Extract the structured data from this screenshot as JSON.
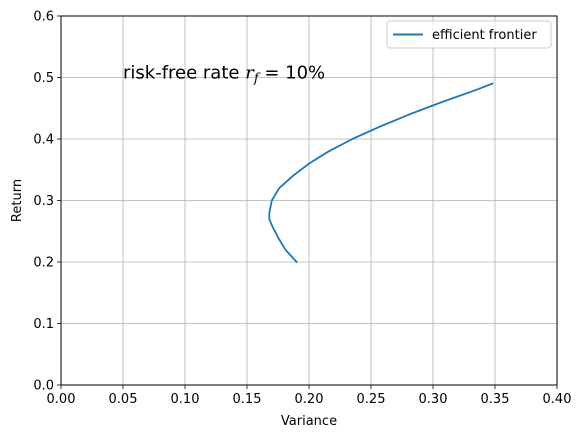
{
  "chart_data": {
    "type": "line",
    "title": "",
    "xlabel": "Variance",
    "ylabel": "Return",
    "xlim": [
      0,
      0.4
    ],
    "ylim": [
      0,
      0.6
    ],
    "x_ticks": [
      "0.00",
      "0.05",
      "0.10",
      "0.15",
      "0.20",
      "0.25",
      "0.30",
      "0.35",
      "0.40"
    ],
    "y_ticks": [
      "0.0",
      "0.1",
      "0.2",
      "0.3",
      "0.4",
      "0.5",
      "0.6"
    ],
    "grid": true,
    "legend_position": "top-right",
    "annotation": {
      "prefix": "risk-free rate ",
      "symbol": "r",
      "subscript": "f",
      "suffix": " = 10%",
      "x": 0.05,
      "y": 0.5
    },
    "series": [
      {
        "name": "efficient frontier",
        "color": "#1f77b4",
        "points": [
          [
            0.19,
            0.2
          ],
          [
            0.181,
            0.22
          ],
          [
            0.175,
            0.24
          ],
          [
            0.17,
            0.26
          ],
          [
            0.168,
            0.27
          ],
          [
            0.168,
            0.28
          ],
          [
            0.17,
            0.3
          ],
          [
            0.176,
            0.32
          ],
          [
            0.187,
            0.34
          ],
          [
            0.2,
            0.36
          ],
          [
            0.216,
            0.38
          ],
          [
            0.235,
            0.4
          ],
          [
            0.257,
            0.42
          ],
          [
            0.281,
            0.44
          ],
          [
            0.307,
            0.46
          ],
          [
            0.335,
            0.48
          ],
          [
            0.348,
            0.49
          ]
        ]
      }
    ]
  }
}
